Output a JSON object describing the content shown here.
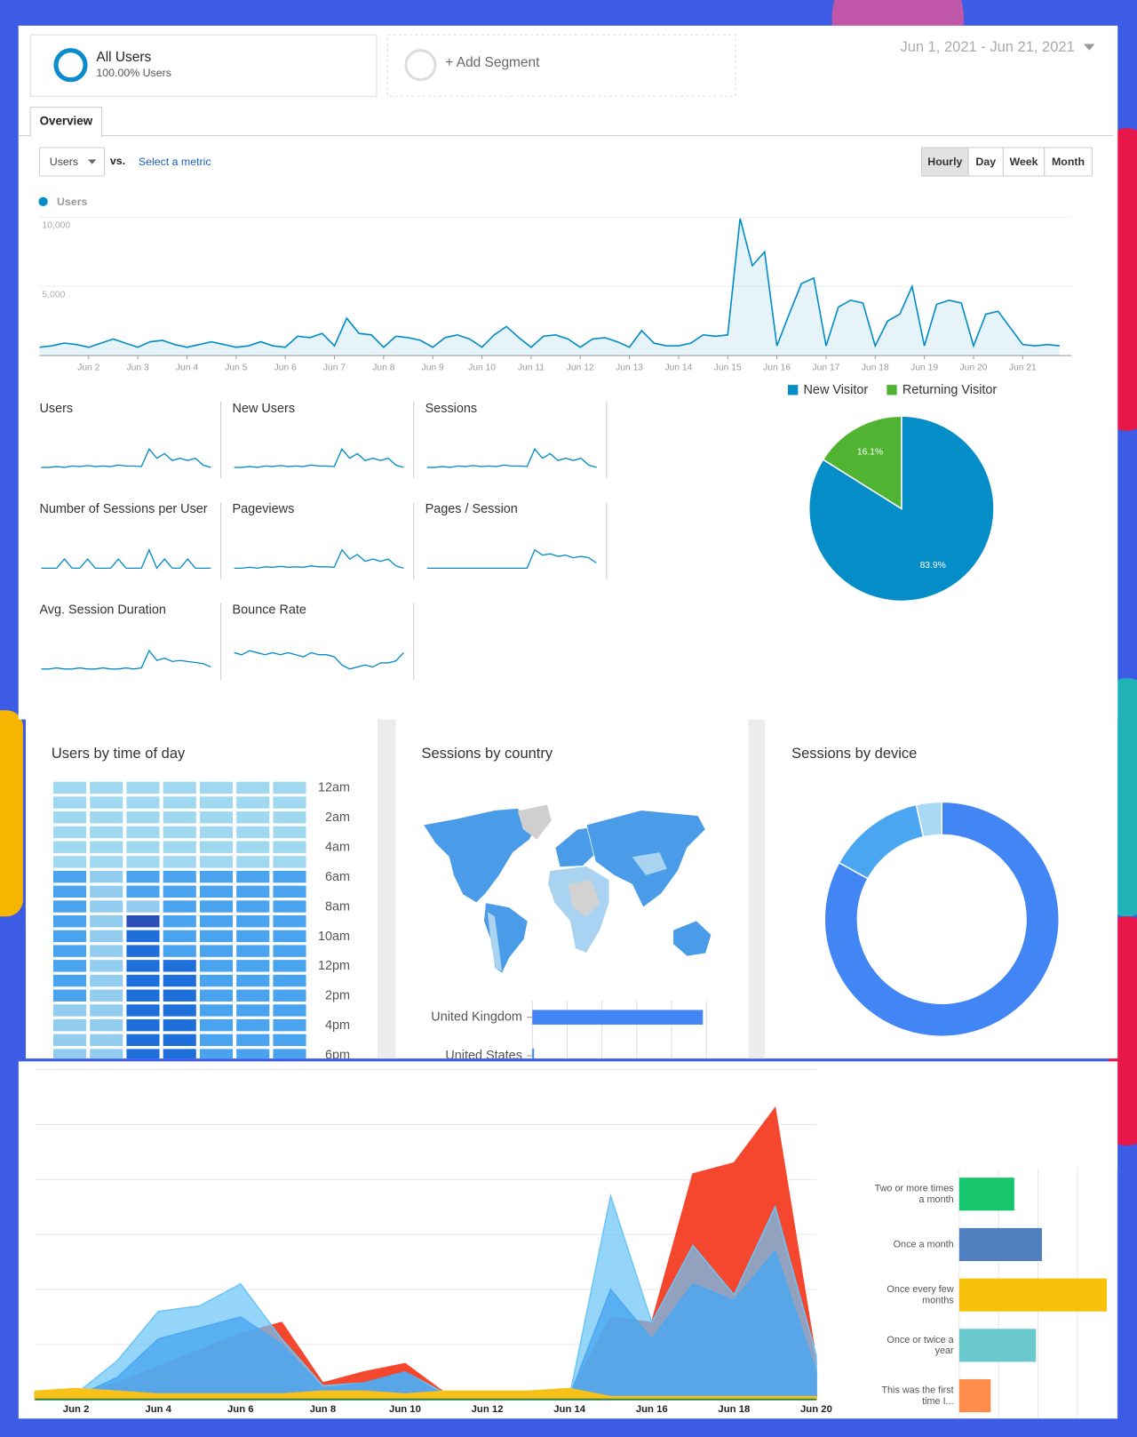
{
  "segments": {
    "title": "All Users",
    "subtitle": "100.00% Users",
    "add": "+ Add Segment",
    "date_range": "Jun 1, 2021 - Jun 21, 2021"
  },
  "tab": "Overview",
  "controls": {
    "metric": "Users",
    "vs": "vs.",
    "select_metric": "Select a metric",
    "granularity": [
      "Hourly",
      "Day",
      "Week",
      "Month"
    ],
    "active_granularity": 0
  },
  "scorecards": [
    {
      "title": "Users",
      "color": "#058dc7",
      "values": [
        1,
        1,
        1.2,
        1,
        1.3,
        1.2,
        1.4,
        1.2,
        1.3,
        1.2,
        1.5,
        1.3,
        1.3,
        1.2,
        5,
        3,
        4,
        2.5,
        3,
        2.5,
        3,
        1.5,
        1
      ]
    },
    {
      "title": "New Users",
      "color": "#058dc7",
      "values": [
        1,
        1,
        1.2,
        1,
        1.3,
        1.2,
        1.4,
        1.2,
        1.3,
        1.2,
        1.5,
        1.3,
        1.3,
        1.2,
        5,
        3,
        4,
        2.5,
        3,
        2.5,
        3,
        1.5,
        1
      ]
    },
    {
      "title": "Sessions",
      "color": "#058dc7",
      "values": [
        1,
        1,
        1.2,
        1,
        1.3,
        1.2,
        1.4,
        1.2,
        1.3,
        1.2,
        1.5,
        1.3,
        1.3,
        1.2,
        5,
        3,
        4,
        2.5,
        3,
        2.5,
        3,
        1.5,
        1
      ]
    },
    {
      "title": "Number of Sessions per User",
      "color": "#058dc7",
      "values": [
        3,
        3,
        3,
        3.1,
        3,
        3,
        3.1,
        3,
        3,
        3,
        3.1,
        3,
        3,
        3,
        3.2,
        3,
        3.1,
        3,
        3,
        3.1,
        3,
        3,
        3
      ]
    },
    {
      "title": "Pageviews",
      "color": "#058dc7",
      "values": [
        1,
        1,
        1.2,
        1,
        1.3,
        1.2,
        1.4,
        1.2,
        1.3,
        1.2,
        1.5,
        1.3,
        1.3,
        1.2,
        5,
        3,
        4,
        2.5,
        3,
        2.5,
        3,
        1.5,
        1
      ]
    },
    {
      "title": "Pages / Session",
      "color": "#058dc7",
      "values": [
        1,
        1,
        1,
        1,
        1,
        1,
        1,
        1,
        1,
        1,
        1,
        1,
        1,
        1,
        2.4,
        2,
        2.1,
        1.9,
        2,
        1.8,
        1.9,
        1.8,
        1.4
      ]
    },
    {
      "title": "Avg. Session Duration",
      "color": "#058dc7",
      "values": [
        1,
        1,
        1.1,
        1,
        1,
        1.1,
        1,
        1,
        1.1,
        1,
        1,
        1.1,
        1,
        1.1,
        2.7,
        1.8,
        2,
        1.7,
        1.8,
        1.7,
        1.6,
        1.5,
        1.2
      ]
    },
    {
      "title": "Bounce Rate",
      "color": "#058dc7",
      "values": [
        3.4,
        3.3,
        3.5,
        3.4,
        3.3,
        3.4,
        3.3,
        3.4,
        3.3,
        3.2,
        3.4,
        3.3,
        3.3,
        3.2,
        2.8,
        2.6,
        2.7,
        2.8,
        2.7,
        2.9,
        2.9,
        3,
        3.4
      ]
    }
  ],
  "chart_data": [
    {
      "type": "line",
      "series": [
        {
          "name": "Users",
          "color": "#058dc7",
          "x": [
            0,
            0.25,
            0.5,
            0.75,
            1,
            1.25,
            1.5,
            1.75,
            2,
            2.25,
            2.5,
            2.75,
            3,
            3.25,
            3.5,
            3.75,
            4,
            4.25,
            4.5,
            4.75,
            5,
            5.25,
            5.5,
            5.75,
            6,
            6.25,
            6.5,
            6.75,
            7,
            7.25,
            7.5,
            7.75,
            8,
            8.25,
            8.5,
            8.75,
            9,
            9.25,
            9.5,
            9.75,
            10,
            10.25,
            10.5,
            10.75,
            11,
            11.25,
            11.5,
            11.75,
            12,
            12.25,
            12.5,
            12.75,
            13,
            13.25,
            13.5,
            13.75,
            14,
            14.25,
            14.5,
            14.75,
            15,
            15.25,
            15.5,
            15.75,
            16,
            16.25,
            16.5,
            16.75,
            17,
            17.25,
            17.5,
            17.75,
            18,
            18.25,
            18.5,
            18.75,
            19,
            19.25,
            19.5,
            19.75,
            20,
            20.25,
            20.5,
            20.75
          ],
          "values": [
            600,
            700,
            900,
            800,
            600,
            900,
            1200,
            900,
            600,
            1000,
            1100,
            800,
            600,
            800,
            1000,
            800,
            600,
            700,
            1000,
            700,
            600,
            1400,
            1300,
            1600,
            700,
            2700,
            1600,
            1500,
            600,
            1400,
            1300,
            1100,
            600,
            1300,
            1500,
            1200,
            600,
            1500,
            2100,
            1300,
            600,
            1400,
            1500,
            1200,
            600,
            1200,
            1300,
            1000,
            600,
            1800,
            900,
            700,
            700,
            900,
            1500,
            1400,
            1500,
            9900,
            6500,
            7500,
            700,
            3000,
            5200,
            5600,
            700,
            3500,
            4000,
            3800,
            700,
            2500,
            3000,
            5000,
            700,
            3700,
            4000,
            3800,
            700,
            3000,
            3200,
            2000,
            800,
            700,
            800,
            700
          ]
        }
      ],
      "xlim": [
        0,
        21
      ],
      "xticks": [
        {
          "value": 1,
          "label": "Jun 2"
        },
        {
          "value": 2,
          "label": "Jun 3"
        },
        {
          "value": 3,
          "label": "Jun 4"
        },
        {
          "value": 4,
          "label": "Jun 5"
        },
        {
          "value": 5,
          "label": "Jun 6"
        },
        {
          "value": 6,
          "label": "Jun 7"
        },
        {
          "value": 7,
          "label": "Jun 8"
        },
        {
          "value": 8,
          "label": "Jun 9"
        },
        {
          "value": 9,
          "label": "Jun 10"
        },
        {
          "value": 10,
          "label": "Jun 11"
        },
        {
          "value": 11,
          "label": "Jun 12"
        },
        {
          "value": 12,
          "label": "Jun 13"
        },
        {
          "value": 13,
          "label": "Jun 14"
        },
        {
          "value": 14,
          "label": "Jun 15"
        },
        {
          "value": 15,
          "label": "Jun 16"
        },
        {
          "value": 16,
          "label": "Jun 17"
        },
        {
          "value": 17,
          "label": "Jun 18"
        },
        {
          "value": 18,
          "label": "Jun 19"
        },
        {
          "value": 19,
          "label": "Jun 20"
        },
        {
          "value": 20,
          "label": "Jun 21"
        }
      ],
      "ylim": [
        0,
        10000
      ],
      "yticks": [
        {
          "value": 5000,
          "label": "5,000"
        },
        {
          "value": 10000,
          "label": "10,000"
        }
      ],
      "grid": true
    },
    {
      "type": "pie",
      "categories": [
        "New Visitor",
        "Returning Visitor"
      ],
      "values": [
        83.9,
        16.1
      ],
      "value_labels": [
        "83.9%",
        "16.1%"
      ],
      "colors": [
        "#058dc7",
        "#50b432"
      ]
    },
    {
      "type": "heatmap",
      "title": "Users by time of day",
      "row_labels": [
        "12am",
        "2am",
        "4am",
        "6am",
        "8am",
        "10am",
        "12pm",
        "2pm",
        "4pm",
        "6pm"
      ],
      "colors": [
        "#9fd8ef",
        "#92cdf0",
        "#4aa3ef",
        "#1e6fd9",
        "#2a4fb8"
      ],
      "values": [
        [
          1,
          1,
          1,
          1,
          1,
          1,
          1
        ],
        [
          1,
          1,
          1,
          1,
          1,
          1,
          1
        ],
        [
          1,
          1,
          1,
          1,
          1,
          1,
          1
        ],
        [
          1,
          1,
          1,
          1,
          1,
          1,
          1
        ],
        [
          1,
          1,
          1,
          1,
          1,
          1,
          1
        ],
        [
          1,
          1,
          1,
          1,
          1,
          1,
          1
        ],
        [
          3,
          2,
          3,
          3,
          3,
          3,
          3
        ],
        [
          3,
          2,
          3,
          3,
          3,
          3,
          3
        ],
        [
          3,
          2,
          2,
          3,
          3,
          3,
          3
        ],
        [
          3,
          2,
          5,
          3,
          3,
          3,
          3
        ],
        [
          3,
          2,
          4,
          3,
          3,
          3,
          3
        ],
        [
          3,
          2,
          4,
          3,
          3,
          3,
          3
        ],
        [
          3,
          2,
          4,
          4,
          3,
          3,
          3
        ],
        [
          3,
          2,
          4,
          4,
          3,
          3,
          3
        ],
        [
          3,
          2,
          4,
          4,
          3,
          3,
          3
        ],
        [
          2,
          2,
          4,
          4,
          3,
          3,
          3
        ],
        [
          2,
          2,
          4,
          4,
          3,
          3,
          3
        ],
        [
          2,
          2,
          4,
          4,
          3,
          3,
          3
        ],
        [
          2,
          2,
          4,
          4,
          3,
          3,
          3
        ]
      ]
    },
    {
      "type": "hbar",
      "title": "Sessions by country",
      "categories": [
        "United Kingdom",
        "United States"
      ],
      "values": [
        98,
        1
      ],
      "color": "#4285f4",
      "xlim": [
        0,
        100
      ],
      "xticks": [
        0,
        20,
        40,
        60,
        80,
        100
      ]
    },
    {
      "type": "donut",
      "title": "Sessions by device",
      "values": [
        83,
        13.5,
        3.5
      ],
      "colors": [
        "#4285f4",
        "#4ba6f2",
        "#a9d9f5"
      ]
    },
    {
      "type": "area",
      "categories": [
        null,
        "Jun 2",
        null,
        "Jun 4",
        null,
        "Jun 6",
        null,
        "Jun 8",
        null,
        "Jun 10",
        null,
        "Jun 12",
        null,
        "Jun 14",
        null,
        "Jun 16",
        null,
        "Jun 18",
        null,
        "Jun 20"
      ],
      "series": [
        {
          "color": "#f4472e",
          "values": [
            0.1,
            0.1,
            0.3,
            0.6,
            0.9,
            1.2,
            1.4,
            0.3,
            0.5,
            0.65,
            0.1,
            0.08,
            0.08,
            0.1,
            1.5,
            1.4,
            4.1,
            4.3,
            5.3,
            0.7
          ]
        },
        {
          "color": "#6cc5f7",
          "values": [
            0.1,
            0.1,
            0.7,
            1.6,
            1.7,
            2.1,
            1.1,
            0.25,
            0.3,
            0.5,
            0.1,
            0.05,
            0.05,
            0.05,
            3.7,
            1.4,
            2.8,
            1.9,
            3.5,
            0.8
          ]
        },
        {
          "color": "#4aa8f2",
          "values": [
            0.05,
            0.05,
            0.4,
            1.1,
            1.3,
            1.5,
            1.0,
            0.2,
            0.3,
            0.5,
            0.05,
            0.05,
            0.05,
            0.05,
            2.0,
            1.1,
            2.1,
            1.8,
            2.7,
            0.5
          ]
        },
        {
          "color": "#f6c11a",
          "values": [
            0.15,
            0.2,
            0.15,
            0.1,
            0.1,
            0.1,
            0.1,
            0.15,
            0.15,
            0.1,
            0.15,
            0.15,
            0.15,
            0.2,
            0.05,
            0.05,
            0.05,
            0.05,
            0.05,
            0.05
          ]
        }
      ],
      "ylim": [
        0,
        6
      ],
      "yticks": [
        0,
        1,
        2,
        3,
        4,
        5,
        6
      ],
      "grid": true
    },
    {
      "type": "hbar",
      "categories": [
        "Two or more times a month",
        "Once a month",
        "Once every few months",
        "Once or twice a year",
        "This was the first time I..."
      ],
      "values": [
        1.4,
        2.1,
        3.75,
        1.95,
        0.8
      ],
      "colors": [
        "#17c66c",
        "#4f7fbf",
        "#f7c10c",
        "#6ac9cc",
        "#ff8c4b"
      ],
      "xlim": [
        0,
        4
      ],
      "xticks": [
        0,
        1,
        2,
        3,
        4
      ]
    }
  ]
}
